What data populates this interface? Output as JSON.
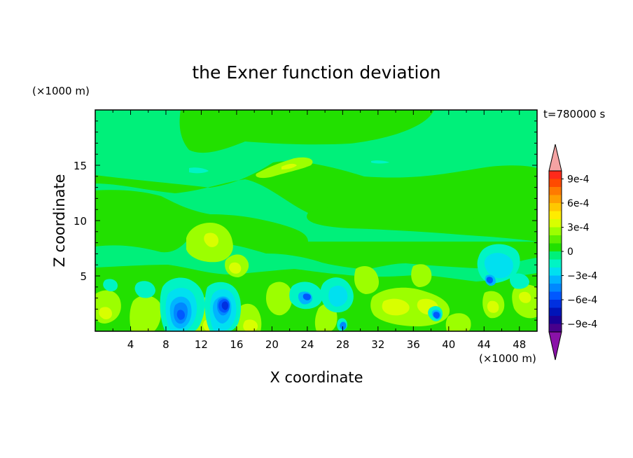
{
  "chart_data": {
    "type": "heatmap",
    "title": "the Exner function deviation",
    "time_label": "t=780000 s",
    "xlabel": "X coordinate",
    "ylabel": "Z coordinate",
    "x_unit": "(×1000 m)",
    "y_unit": "(×1000 m)",
    "xlim": [
      0,
      50
    ],
    "ylim": [
      0,
      20
    ],
    "x_ticks": [
      4,
      8,
      12,
      16,
      20,
      24,
      28,
      32,
      36,
      40,
      44,
      48
    ],
    "y_ticks": [
      5,
      10,
      15
    ],
    "colorbar": {
      "levels": [
        -0.0011,
        -0.001,
        -0.0009,
        -0.0008,
        -0.0007,
        -0.0006,
        -0.0005,
        -0.0004,
        -0.0003,
        -0.0002,
        -0.0001,
        0,
        0.0001,
        0.0002,
        0.0003,
        0.0004,
        0.0005,
        0.0006,
        0.0007,
        0.0008,
        0.0009,
        0.001,
        0.0011
      ],
      "tick_labels": [
        "9e-4",
        "6e-4",
        "3e-4",
        "0",
        "−3e-4",
        "−6e-4",
        "−9e-4"
      ],
      "tick_values": [
        0.0009,
        0.0006,
        0.0003,
        0,
        -0.0003,
        -0.0006,
        -0.0009
      ],
      "over_color": "#f4a3a3",
      "under_color": "#8a12a8",
      "colors_top_to_bottom": [
        "#ff2a1a",
        "#ff4a00",
        "#ff7a00",
        "#ffa000",
        "#ffc800",
        "#ffec00",
        "#d8ff00",
        "#9cff00",
        "#5cf000",
        "#22e000",
        "#00f07a",
        "#00f4c4",
        "#00e0f0",
        "#00b4ff",
        "#0088ff",
        "#0058ff",
        "#0030e0",
        "#0014b8",
        "#1a0098",
        "#48008c"
      ]
    }
  }
}
